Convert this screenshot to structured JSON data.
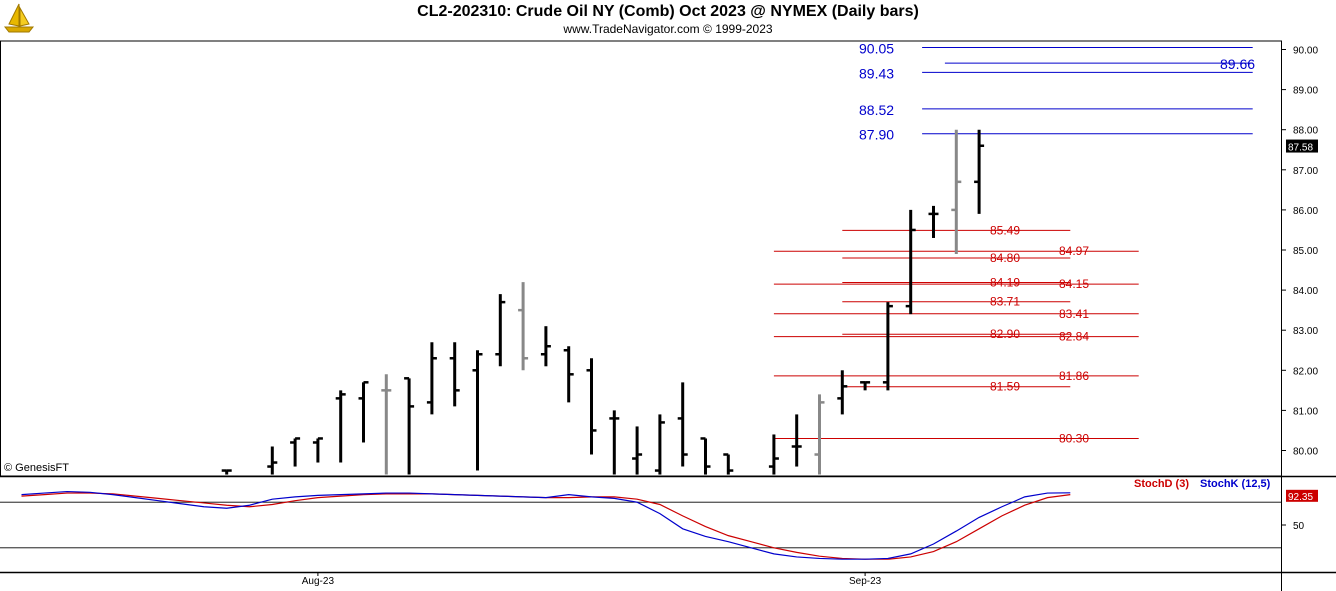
{
  "header": {
    "title": "CL2-202310:  Crude Oil NY (Comb) Oct 2023 @ NYMEX  (Daily bars)",
    "subtitle": "www.TradeNavigator.com © 1999-2023"
  },
  "footer": {
    "copyright": "© GenesisFT"
  },
  "logo": {
    "icon": "sailboat-icon",
    "color": "#e8b800"
  },
  "chart_data": {
    "type": "ohlc",
    "ylim": [
      79.4,
      90.4
    ],
    "y_ticks": [
      "80.00",
      "81.00",
      "82.00",
      "83.00",
      "84.00",
      "85.00",
      "86.00",
      "87.00",
      "88.00",
      "89.00",
      "90.00"
    ],
    "x_ticks": [
      {
        "index": 13,
        "label": "Aug-23"
      },
      {
        "index": 37,
        "label": "Sep-23"
      }
    ],
    "last_price": {
      "value": 87.58,
      "label": "87.58"
    },
    "bars": [
      {
        "i": 9,
        "o": 79.5,
        "h": 79.5,
        "l": 79.4,
        "c": 79.5,
        "color": "#000000"
      },
      {
        "i": 11,
        "o": 79.6,
        "h": 80.1,
        "l": 79.4,
        "c": 79.7,
        "color": "#000000"
      },
      {
        "i": 12,
        "o": 80.2,
        "h": 80.3,
        "l": 79.6,
        "c": 80.3,
        "color": "#000000"
      },
      {
        "i": 13,
        "o": 80.2,
        "h": 80.3,
        "l": 79.7,
        "c": 80.3,
        "color": "#000000"
      },
      {
        "i": 14,
        "o": 81.3,
        "h": 81.5,
        "l": 79.7,
        "c": 81.4,
        "color": "#000000"
      },
      {
        "i": 15,
        "o": 81.3,
        "h": 81.7,
        "l": 80.2,
        "c": 81.7,
        "color": "#000000"
      },
      {
        "i": 16,
        "o": 81.5,
        "h": 81.9,
        "l": 79.4,
        "c": 81.5,
        "color": "#888888"
      },
      {
        "i": 17,
        "o": 81.8,
        "h": 81.8,
        "l": 79.4,
        "c": 81.1,
        "color": "#000000"
      },
      {
        "i": 18,
        "o": 81.2,
        "h": 82.7,
        "l": 80.9,
        "c": 82.3,
        "color": "#000000"
      },
      {
        "i": 19,
        "o": 82.3,
        "h": 82.7,
        "l": 81.1,
        "c": 81.5,
        "color": "#000000"
      },
      {
        "i": 20,
        "o": 82.0,
        "h": 82.5,
        "l": 79.5,
        "c": 82.4,
        "color": "#000000"
      },
      {
        "i": 21,
        "o": 82.4,
        "h": 83.9,
        "l": 82.1,
        "c": 83.7,
        "color": "#000000"
      },
      {
        "i": 22,
        "o": 83.5,
        "h": 84.2,
        "l": 82.0,
        "c": 82.3,
        "color": "#888888"
      },
      {
        "i": 23,
        "o": 82.4,
        "h": 83.1,
        "l": 82.1,
        "c": 82.6,
        "color": "#000000"
      },
      {
        "i": 24,
        "o": 82.5,
        "h": 82.6,
        "l": 81.2,
        "c": 81.9,
        "color": "#000000"
      },
      {
        "i": 25,
        "o": 82.0,
        "h": 82.3,
        "l": 79.9,
        "c": 80.5,
        "color": "#000000"
      },
      {
        "i": 26,
        "o": 80.8,
        "h": 81.0,
        "l": 79.4,
        "c": 80.8,
        "color": "#000000"
      },
      {
        "i": 27,
        "o": 79.8,
        "h": 80.6,
        "l": 79.4,
        "c": 79.9,
        "color": "#000000"
      },
      {
        "i": 28,
        "o": 79.5,
        "h": 80.9,
        "l": 79.4,
        "c": 80.7,
        "color": "#000000"
      },
      {
        "i": 29,
        "o": 80.8,
        "h": 81.7,
        "l": 79.6,
        "c": 79.9,
        "color": "#000000"
      },
      {
        "i": 30,
        "o": 80.3,
        "h": 80.3,
        "l": 79.4,
        "c": 79.6,
        "color": "#000000"
      },
      {
        "i": 31,
        "o": 79.9,
        "h": 79.9,
        "l": 79.4,
        "c": 79.5,
        "color": "#000000"
      },
      {
        "i": 33,
        "o": 79.6,
        "h": 80.4,
        "l": 79.4,
        "c": 79.8,
        "color": "#000000"
      },
      {
        "i": 34,
        "o": 80.1,
        "h": 80.9,
        "l": 79.6,
        "c": 80.1,
        "color": "#000000"
      },
      {
        "i": 35,
        "o": 79.9,
        "h": 81.4,
        "l": 79.4,
        "c": 81.2,
        "color": "#888888"
      },
      {
        "i": 36,
        "o": 81.3,
        "h": 82.0,
        "l": 80.9,
        "c": 81.6,
        "color": "#000000"
      },
      {
        "i": 37,
        "o": 81.7,
        "h": 81.7,
        "l": 81.5,
        "c": 81.7,
        "color": "#000000"
      },
      {
        "i": 38,
        "o": 81.7,
        "h": 83.7,
        "l": 81.5,
        "c": 83.6,
        "color": "#000000"
      },
      {
        "i": 39,
        "o": 83.6,
        "h": 86.0,
        "l": 83.4,
        "c": 85.5,
        "color": "#000000"
      },
      {
        "i": 40,
        "o": 85.9,
        "h": 86.1,
        "l": 85.3,
        "c": 85.9,
        "color": "#000000"
      },
      {
        "i": 41,
        "o": 86.0,
        "h": 88.0,
        "l": 84.9,
        "c": 86.7,
        "color": "#888888"
      },
      {
        "i": 42,
        "o": 86.7,
        "h": 88.0,
        "l": 85.9,
        "c": 87.6,
        "color": "#000000"
      }
    ],
    "levels_red": [
      {
        "value": 85.49,
        "label": "85.49",
        "x_start": 36,
        "x_end": 46,
        "label_pos": "inside"
      },
      {
        "value": 84.97,
        "label": "84.97",
        "x_start": 33,
        "x_end": 49,
        "label_pos": "outside"
      },
      {
        "value": 84.8,
        "label": "84.80",
        "x_start": 36,
        "x_end": 46,
        "label_pos": "inside"
      },
      {
        "value": 84.19,
        "label": "84.19",
        "x_start": 36,
        "x_end": 46,
        "label_pos": "inside"
      },
      {
        "value": 84.15,
        "label": "84.15",
        "x_start": 33,
        "x_end": 49,
        "label_pos": "outside"
      },
      {
        "value": 83.71,
        "label": "83.71",
        "x_start": 36,
        "x_end": 46,
        "label_pos": "inside"
      },
      {
        "value": 83.41,
        "label": "83.41",
        "x_start": 33,
        "x_end": 49,
        "label_pos": "outside"
      },
      {
        "value": 82.9,
        "label": "82.90",
        "x_start": 36,
        "x_end": 46,
        "label_pos": "inside"
      },
      {
        "value": 82.84,
        "label": "82.84",
        "x_start": 33,
        "x_end": 49,
        "label_pos": "outside"
      },
      {
        "value": 81.86,
        "label": "81.86",
        "x_start": 33,
        "x_end": 49,
        "label_pos": "outside"
      },
      {
        "value": 81.59,
        "label": "81.59",
        "x_start": 36,
        "x_end": 46,
        "label_pos": "inside"
      },
      {
        "value": 80.3,
        "label": "80.30",
        "x_start": 33,
        "x_end": 49,
        "label_pos": "outside"
      }
    ],
    "levels_blue": [
      {
        "value": 90.05,
        "label": "90.05",
        "x_start": 39.5,
        "x_end": 54,
        "label_pos": "left"
      },
      {
        "value": 89.66,
        "label": "89.66",
        "x_start": 40.5,
        "x_end": 54,
        "label_pos": "right"
      },
      {
        "value": 89.43,
        "label": "89.43",
        "x_start": 39.5,
        "x_end": 54,
        "label_pos": "left"
      },
      {
        "value": 88.52,
        "label": "88.52",
        "x_start": 39.5,
        "x_end": 54,
        "label_pos": "left"
      },
      {
        "value": 87.9,
        "label": "87.90",
        "x_start": 39.5,
        "x_end": 54,
        "label_pos": "left"
      }
    ],
    "stochastic": {
      "ylim": [
        0,
        100
      ],
      "y_ticks": [
        "50"
      ],
      "upper_line": 80,
      "lower_line": 20,
      "last_value": {
        "value": 92.35,
        "label": "92.35"
      },
      "legend": [
        {
          "name": "StochD (3)",
          "color": "#cc0000"
        },
        {
          "name": "StochK (12,5)",
          "color": "#0000cc"
        }
      ],
      "stochK": [
        90,
        92,
        94,
        93,
        90,
        86,
        82,
        78,
        74,
        72,
        76,
        84,
        87,
        89,
        90,
        91,
        92,
        92,
        91,
        90,
        89,
        88,
        87,
        86,
        90,
        87,
        85,
        80,
        65,
        45,
        35,
        28,
        20,
        12,
        8,
        6,
        5,
        5,
        6,
        12,
        25,
        42,
        60,
        74,
        87,
        92,
        92.35
      ],
      "stochD": [
        88,
        90,
        92,
        92,
        91,
        88,
        85,
        82,
        79,
        76,
        74,
        77,
        82,
        86,
        88,
        90,
        91,
        91,
        91,
        90,
        89,
        88,
        87,
        86,
        86,
        87,
        87,
        84,
        77,
        62,
        48,
        36,
        28,
        20,
        14,
        9,
        6,
        5,
        5,
        8,
        15,
        28,
        45,
        62,
        76,
        86,
        90
      ]
    }
  }
}
